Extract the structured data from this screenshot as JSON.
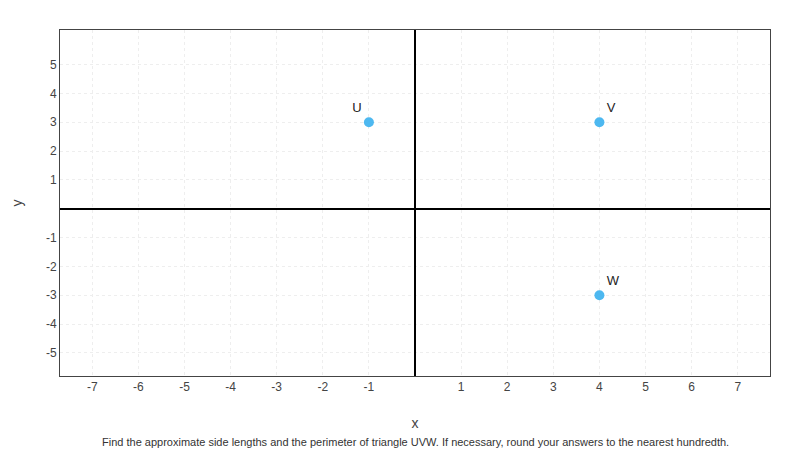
{
  "chart_data": {
    "type": "scatter",
    "xlabel": "x",
    "ylabel": "y",
    "x": [
      -1,
      4,
      4
    ],
    "values": [
      3,
      3,
      -3
    ],
    "labels": [
      "U",
      "V",
      "W"
    ],
    "color": "#4db8f0",
    "marker": "circle",
    "xlim": [
      -7.7,
      7.7
    ],
    "ylim": [
      -5.8,
      6.2
    ],
    "xticks": [
      -7,
      -6,
      -5,
      -4,
      -3,
      -2,
      -1,
      1,
      2,
      3,
      4,
      5,
      6,
      7
    ],
    "yticks": [
      -5,
      -4,
      -3,
      -2,
      -1,
      1,
      2,
      3,
      4,
      5
    ],
    "grid": true,
    "annotations": [
      "Find the approximate side lengths and the perimeter of triangle UVW. If necessary, round your answers to the nearest hundredth."
    ]
  }
}
